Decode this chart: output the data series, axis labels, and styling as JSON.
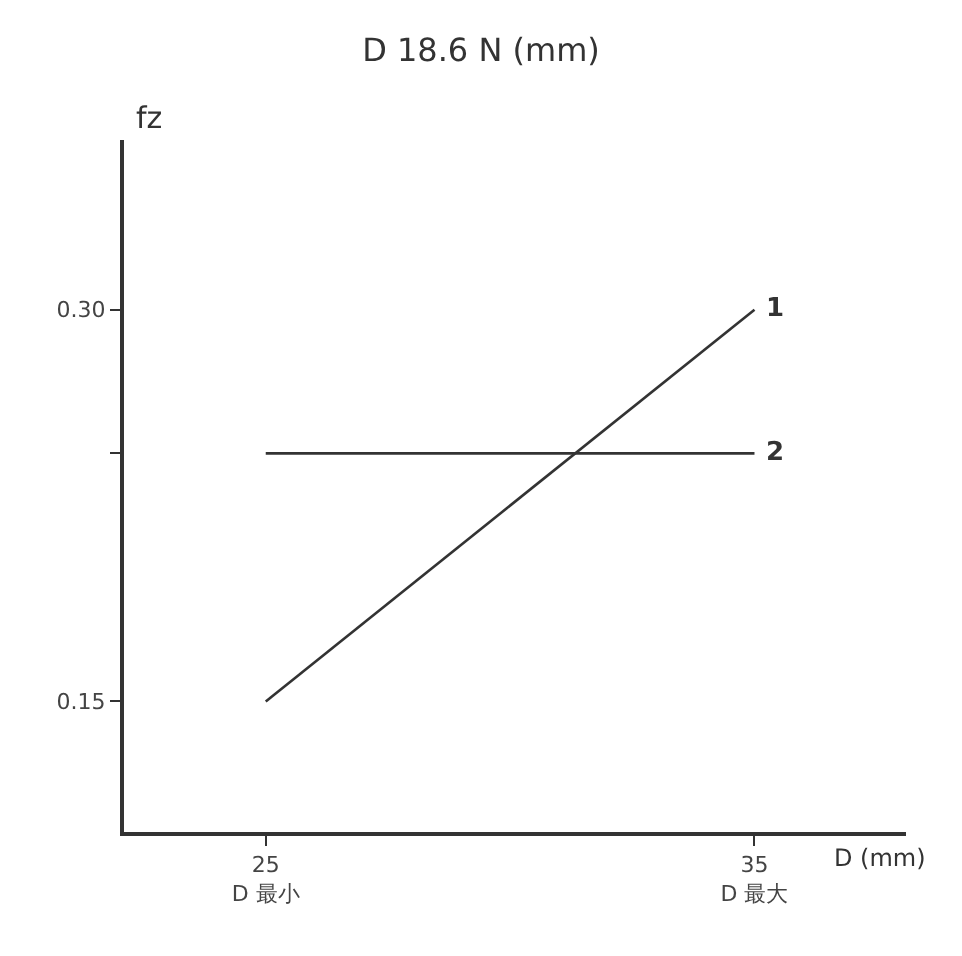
{
  "chart_data": {
    "type": "line",
    "title": "D 18.6 N (mm)",
    "xlabel": "D (mm)",
    "ylabel": "fz",
    "x": [
      25,
      35
    ],
    "series": [
      {
        "name": "1",
        "color": "#333333",
        "values": [
          0.15,
          0.3
        ]
      },
      {
        "name": "2",
        "color": "#333333",
        "values": [
          0.245,
          0.245
        ]
      }
    ],
    "xlim": [
      22.1,
      38.1
    ],
    "xticks": [
      {
        "value": 25,
        "label": "25\nD 最小"
      },
      {
        "value": 35,
        "label": "35\nD 最大"
      }
    ],
    "ylim": [
      0.1,
      0.365
    ],
    "yticks": [
      {
        "value": 0.15,
        "label": "0.15"
      },
      {
        "value": 0.245,
        "label": null
      },
      {
        "value": 0.3,
        "label": "0.30"
      }
    ],
    "legend": false,
    "marker": "none",
    "line_style": "solid"
  }
}
